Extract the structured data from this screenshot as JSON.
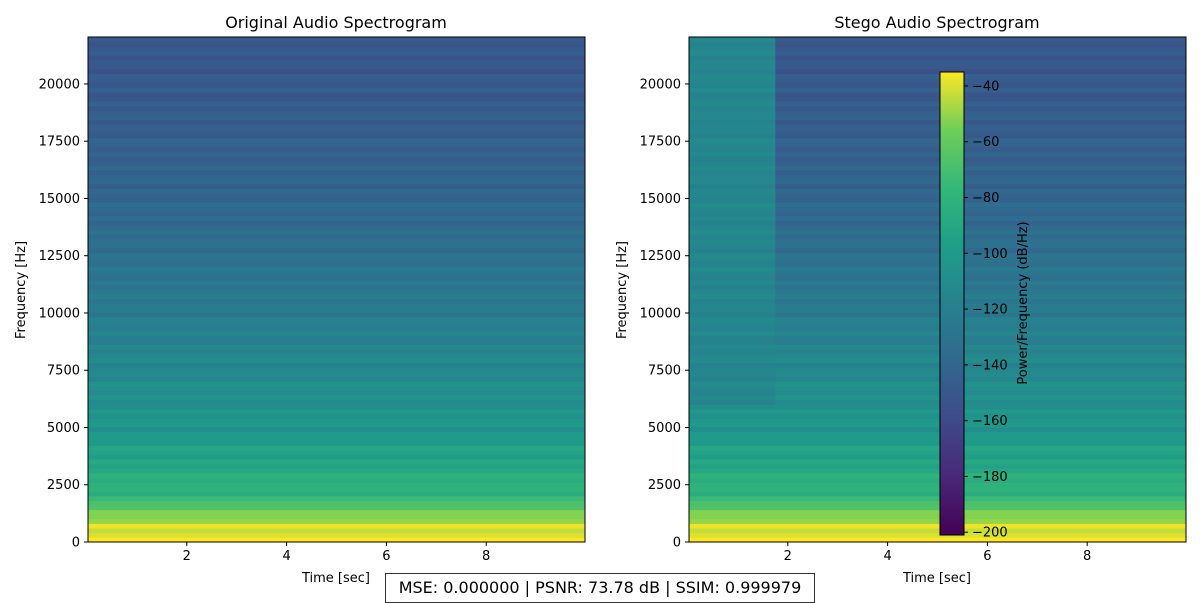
{
  "chart_data": [
    {
      "type": "heatmap",
      "title": "Original Audio Spectrogram",
      "xlabel": "Time [sec]",
      "ylabel": "Frequency [Hz]",
      "xlim": [
        0.02,
        9.98
      ],
      "ylim": [
        0,
        22050
      ],
      "xticks": [
        2,
        4,
        6,
        8
      ],
      "yticks": [
        0,
        2500,
        5000,
        7500,
        10000,
        12500,
        15000,
        17500,
        20000
      ],
      "colormap": "viridis",
      "value_range_db": [
        -200,
        -30
      ],
      "levels_db": {
        "low_freq_peak": -35,
        "at_2000_hz": -75,
        "at_5000_hz": -100,
        "at_10000_hz": -120,
        "at_15000_hz": -138,
        "at_21000_hz": -148
      }
    },
    {
      "type": "heatmap",
      "title": "Stego Audio Spectrogram",
      "xlabel": "Time [sec]",
      "ylabel": "Frequency [Hz]",
      "xlim": [
        0.02,
        9.98
      ],
      "ylim": [
        0,
        22050
      ],
      "xticks": [
        2,
        4,
        6,
        8
      ],
      "yticks": [
        0,
        2500,
        5000,
        7500,
        10000,
        12500,
        15000,
        17500,
        20000
      ],
      "colormap": "viridis",
      "value_range_db": [
        -200,
        -30
      ],
      "embedded_region": {
        "t_end": 1.75,
        "f_start": 6000,
        "f_end": 22050,
        "level_db": -112
      },
      "colorbar": {
        "label": "Power/Frequency (dB/Hz)",
        "ticks": [
          -40,
          -60,
          -80,
          -100,
          -120,
          -140,
          -160,
          -180,
          -200
        ],
        "tick_labels": [
          "−40",
          "−60",
          "−80",
          "−100",
          "−120",
          "−140",
          "−160",
          "−180",
          "−200"
        ],
        "range": [
          -201,
          -35
        ]
      }
    }
  ],
  "metrics": {
    "text": "MSE: 0.000000 | PSNR: 73.78 dB | SSIM: 0.999979"
  }
}
